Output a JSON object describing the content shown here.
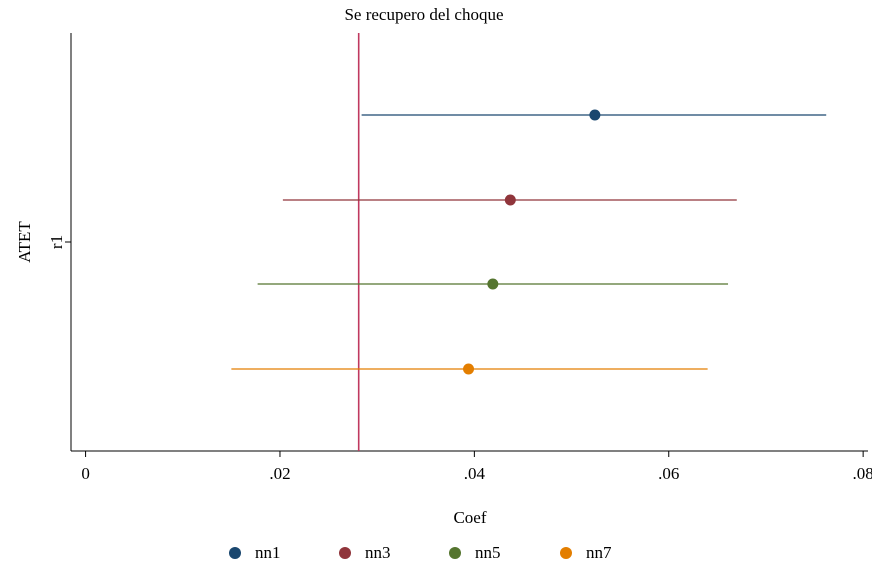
{
  "chart_data": {
    "type": "scatter",
    "title": "Se recupero del choque",
    "xlabel": "Coef",
    "ylabel": "ATET",
    "y_category": "r1",
    "xlim": [
      -0.0015,
      0.0805
    ],
    "xticks": [
      "0",
      ".02",
      ".04",
      ".06",
      ".08"
    ],
    "xtick_values": [
      0,
      0.02,
      0.04,
      0.06,
      0.08
    ],
    "reference_line": {
      "x": 0.0281,
      "color": "#c0395f"
    },
    "grid": false,
    "legend_position": "bottom",
    "series": [
      {
        "name": "nn1",
        "estimate": 0.0524,
        "ci_low": 0.0284,
        "ci_high": 0.0762,
        "color": "#1a476f"
      },
      {
        "name": "nn3",
        "estimate": 0.0437,
        "ci_low": 0.0203,
        "ci_high": 0.067,
        "color": "#90353b"
      },
      {
        "name": "nn5",
        "estimate": 0.0419,
        "ci_low": 0.0177,
        "ci_high": 0.0661,
        "color": "#55752f"
      },
      {
        "name": "nn7",
        "estimate": 0.0394,
        "ci_low": 0.015,
        "ci_high": 0.064,
        "color": "#e37e00"
      }
    ]
  }
}
